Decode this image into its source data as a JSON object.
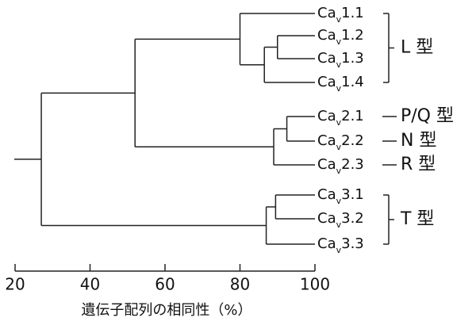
{
  "chart_data": {
    "type": "dendrogram",
    "label_prefix": "Ca",
    "label_subscript": "v",
    "x_label": "遺伝子配列の相同性（%）",
    "xlim": [
      20,
      100
    ],
    "xticks": [
      20,
      40,
      60,
      80,
      100
    ],
    "tree": {
      "value": 27,
      "children": [
        {
          "value": 52,
          "children": [
            {
              "value": 80,
              "group": "L 型",
              "children": [
                {
                  "label": "1.1"
                },
                {
                  "value": 86.5,
                  "children": [
                    {
                      "value": 90,
                      "children": [
                        {
                          "label": "1.2"
                        },
                        {
                          "label": "1.3"
                        }
                      ]
                    },
                    {
                      "label": "1.4"
                    }
                  ]
                }
              ]
            },
            {
              "value": 89,
              "children": [
                {
                  "value": 92.5,
                  "children": [
                    {
                      "label": "2.1",
                      "group": "P/Q 型"
                    },
                    {
                      "label": "2.2",
                      "group": "N 型"
                    }
                  ]
                },
                {
                  "label": "2.3",
                  "group": "R 型"
                }
              ]
            }
          ]
        },
        {
          "value": 87,
          "group": "T 型",
          "children": [
            {
              "value": 89.5,
              "children": [
                {
                  "label": "3.1"
                },
                {
                  "label": "3.2"
                }
              ]
            },
            {
              "label": "3.3"
            }
          ]
        }
      ]
    }
  }
}
